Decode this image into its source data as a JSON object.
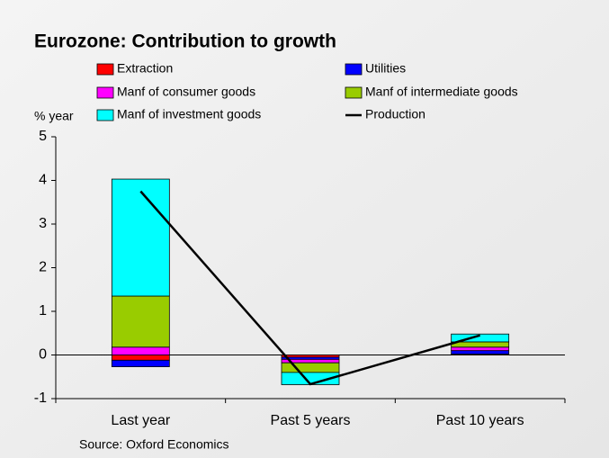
{
  "chart_data": {
    "type": "bar",
    "stacked": true,
    "title": "Eurozone: Contribution to growth",
    "y_axis_label": "% year",
    "source": "Source: Oxford Economics",
    "categories": [
      "Last year",
      "Past 5 years",
      "Past 10 years"
    ],
    "series": [
      {
        "name": "Extraction",
        "color": "#ff0000",
        "values": [
          -0.12,
          -0.05,
          0.02
        ]
      },
      {
        "name": "Utilities",
        "color": "#0000ff",
        "values": [
          -0.15,
          -0.05,
          0.08
        ]
      },
      {
        "name": "Manf of consumer goods",
        "color": "#ff00ff",
        "values": [
          0.18,
          -0.08,
          0.08
        ]
      },
      {
        "name": "Manf of intermediate goods",
        "color": "#99cc00",
        "values": [
          1.17,
          -0.22,
          0.12
        ]
      },
      {
        "name": "Manf of investment goods",
        "color": "#00ffff",
        "values": [
          2.68,
          -0.28,
          0.18
        ]
      },
      {
        "name": "Production",
        "color": "#000000",
        "type": "line",
        "values": [
          3.75,
          -0.67,
          0.45
        ]
      }
    ],
    "ylim": [
      -1,
      5
    ],
    "yticks": [
      -1,
      0,
      1,
      2,
      3,
      4,
      5
    ]
  }
}
